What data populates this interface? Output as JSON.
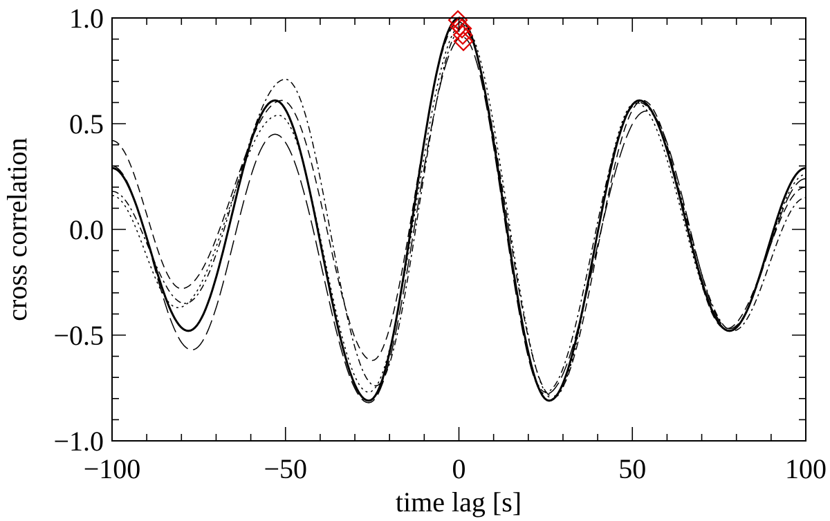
{
  "chart_data": {
    "type": "line",
    "xlabel": "time lag [s]",
    "ylabel": "cross correlation",
    "xlim": [
      -100,
      100
    ],
    "ylim": [
      -1.0,
      1.0
    ],
    "x_ticks": [
      -100,
      -50,
      0,
      50,
      100
    ],
    "x_tick_labels": [
      "−100",
      "−50",
      "0",
      "50",
      "100"
    ],
    "y_ticks": [
      -1.0,
      -0.5,
      0.0,
      0.5,
      1.0
    ],
    "y_tick_labels": [
      "−1.0",
      "−0.5",
      "0.0",
      "0.5",
      "1.0"
    ],
    "grid": false,
    "series": [
      {
        "style": "solid-thick",
        "color": "#000000",
        "points": [
          [
            -100,
            0.29
          ],
          [
            -78,
            -0.48
          ],
          [
            -53,
            0.61
          ],
          [
            -26,
            -0.81
          ],
          [
            0,
            1.0
          ],
          [
            26,
            -0.81
          ],
          [
            52,
            0.61
          ],
          [
            78,
            -0.48
          ],
          [
            100,
            0.29
          ]
        ]
      },
      {
        "style": "dashed",
        "color": "#000000",
        "points": [
          [
            -100,
            0.42
          ],
          [
            -80,
            -0.28
          ],
          [
            -51,
            0.61
          ],
          [
            -25,
            -0.62
          ],
          [
            0,
            0.98
          ],
          [
            27,
            -0.79
          ],
          [
            53,
            0.61
          ],
          [
            77,
            -0.47
          ],
          [
            100,
            0.2
          ]
        ]
      },
      {
        "style": "dotted",
        "color": "#000000",
        "points": [
          [
            -100,
            0.16
          ],
          [
            -81,
            -0.37
          ],
          [
            -52,
            0.54
          ],
          [
            -26,
            -0.77
          ],
          [
            1,
            0.97
          ],
          [
            27,
            -0.8
          ],
          [
            51,
            0.6
          ],
          [
            78,
            -0.48
          ],
          [
            100,
            0.26
          ]
        ]
      },
      {
        "style": "dash-dot",
        "color": "#000000",
        "points": [
          [
            -100,
            0.18
          ],
          [
            -79,
            -0.35
          ],
          [
            -50,
            0.71
          ],
          [
            -24,
            -0.74
          ],
          [
            1,
            0.95
          ],
          [
            25,
            -0.77
          ],
          [
            52,
            0.6
          ],
          [
            79,
            -0.48
          ],
          [
            100,
            0.15
          ]
        ]
      },
      {
        "style": "long-dash",
        "color": "#000000",
        "points": [
          [
            -100,
            0.3
          ],
          [
            -77,
            -0.57
          ],
          [
            -53,
            0.45
          ],
          [
            -26,
            -0.82
          ],
          [
            1,
            0.91
          ],
          [
            25,
            -0.78
          ],
          [
            54,
            0.56
          ],
          [
            78,
            -0.47
          ],
          [
            100,
            0.24
          ]
        ]
      }
    ],
    "markers": {
      "shape": "diamond",
      "color": "#dd0000",
      "points": [
        [
          -0.3,
          0.99
        ],
        [
          0.2,
          0.96
        ],
        [
          0.9,
          0.95
        ],
        [
          1.1,
          0.92
        ],
        [
          1.3,
          0.89
        ]
      ]
    }
  }
}
